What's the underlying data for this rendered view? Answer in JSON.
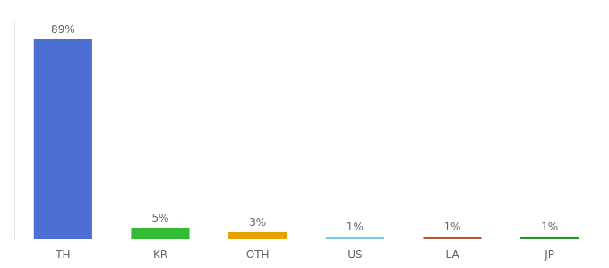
{
  "chart_data": {
    "type": "bar",
    "categories": [
      "TH",
      "KR",
      "OTH",
      "US",
      "LA",
      "JP"
    ],
    "values": [
      89,
      5,
      3,
      1,
      1,
      1
    ],
    "value_labels": [
      "89%",
      "5%",
      "3%",
      "1%",
      "1%",
      "1%"
    ],
    "colors": [
      "#4d6fd4",
      "#33bb33",
      "#e8a000",
      "#77ccee",
      "#bb5533",
      "#229922"
    ],
    "ylim": [
      0,
      97
    ],
    "grid": false,
    "data_labels": true,
    "tick_labels": "x"
  }
}
